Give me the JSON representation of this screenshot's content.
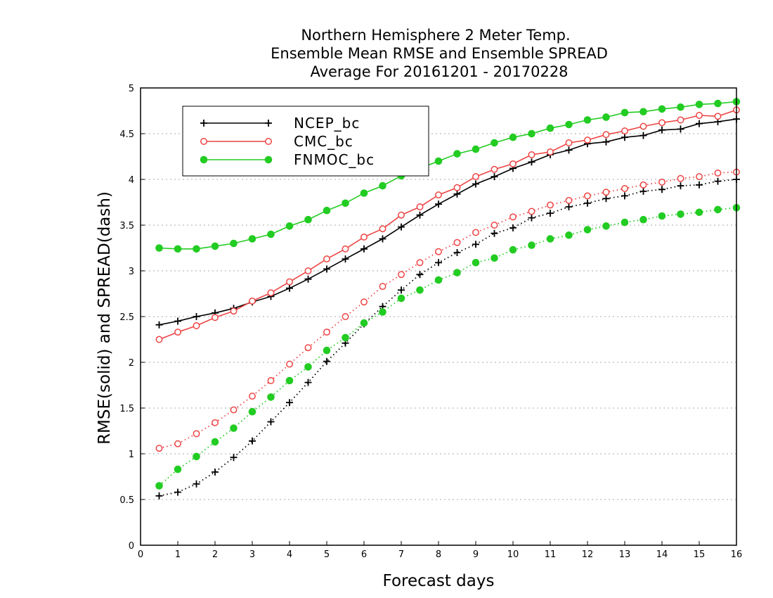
{
  "chart_data": {
    "type": "line",
    "title": [
      "Northern Hemisphere 2 Meter Temp.",
      "Ensemble Mean RMSE and Ensemble SPREAD",
      "Average For 20161201 - 20170228"
    ],
    "xlabel": "Forecast days",
    "ylabel": "RMSE(solid) and SPREAD(dash)",
    "xlim": [
      0,
      16
    ],
    "ylim": [
      0,
      5
    ],
    "x_ticks": [
      "0",
      "1",
      "2",
      "3",
      "4",
      "5",
      "6",
      "7",
      "8",
      "9",
      "10",
      "11",
      "12",
      "13",
      "14",
      "15",
      "16"
    ],
    "y_ticks": [
      "0",
      "0.5",
      "1",
      "1.5",
      "2",
      "2.5",
      "3",
      "3.5",
      "4",
      "4.5",
      "5"
    ],
    "grid": "horizontal dotted",
    "legend_position": "top-left",
    "x": [
      0.5,
      1,
      1.5,
      2,
      2.5,
      3,
      3.5,
      4,
      4.5,
      5,
      5.5,
      6,
      6.5,
      7,
      7.5,
      8,
      8.5,
      9,
      9.5,
      10,
      10.5,
      11,
      11.5,
      12,
      12.5,
      13,
      13.5,
      14,
      14.5,
      15,
      15.5,
      16
    ],
    "series": [
      {
        "name": "NCEP_bc",
        "color": "#000000",
        "marker": "plus",
        "style": "solid",
        "values": [
          2.41,
          2.45,
          2.5,
          2.54,
          2.59,
          2.66,
          2.72,
          2.81,
          2.91,
          3.02,
          3.13,
          3.24,
          3.35,
          3.48,
          3.61,
          3.73,
          3.84,
          3.95,
          4.03,
          4.12,
          4.19,
          4.27,
          4.32,
          4.39,
          4.41,
          4.46,
          4.48,
          4.54,
          4.55,
          4.61,
          4.63,
          4.66
        ]
      },
      {
        "name": "CMC_bc",
        "color": "#ee4444",
        "marker": "open-circle",
        "style": "solid",
        "values": [
          2.25,
          2.33,
          2.4,
          2.49,
          2.56,
          2.67,
          2.76,
          2.88,
          3.0,
          3.13,
          3.24,
          3.37,
          3.46,
          3.61,
          3.7,
          3.83,
          3.91,
          4.03,
          4.11,
          4.17,
          4.27,
          4.3,
          4.4,
          4.43,
          4.49,
          4.53,
          4.58,
          4.62,
          4.65,
          4.7,
          4.69,
          4.76
        ]
      },
      {
        "name": "FNMOC_bc",
        "color": "#22cc22",
        "marker": "filled-circle",
        "style": "solid",
        "values": [
          3.25,
          3.24,
          3.24,
          3.27,
          3.3,
          3.35,
          3.4,
          3.49,
          3.56,
          3.66,
          3.74,
          3.85,
          3.93,
          4.04,
          4.12,
          4.2,
          4.28,
          4.33,
          4.4,
          4.46,
          4.5,
          4.56,
          4.6,
          4.65,
          4.68,
          4.73,
          4.74,
          4.77,
          4.79,
          4.82,
          4.83,
          4.85
        ]
      },
      {
        "name": "",
        "color": "#000000",
        "marker": "plus",
        "style": "dotted",
        "values": [
          0.54,
          0.58,
          0.67,
          0.8,
          0.96,
          1.14,
          1.35,
          1.56,
          1.78,
          2.01,
          2.21,
          2.42,
          2.61,
          2.79,
          2.96,
          3.09,
          3.2,
          3.29,
          3.41,
          3.47,
          3.58,
          3.63,
          3.7,
          3.74,
          3.79,
          3.82,
          3.87,
          3.89,
          3.93,
          3.94,
          3.98,
          4.0
        ]
      },
      {
        "name": "",
        "color": "#ee4444",
        "marker": "open-circle",
        "style": "dotted",
        "values": [
          1.06,
          1.11,
          1.22,
          1.34,
          1.48,
          1.63,
          1.8,
          1.98,
          2.16,
          2.33,
          2.5,
          2.66,
          2.83,
          2.96,
          3.09,
          3.21,
          3.31,
          3.42,
          3.5,
          3.59,
          3.65,
          3.72,
          3.77,
          3.82,
          3.86,
          3.9,
          3.94,
          3.97,
          4.01,
          4.03,
          4.07,
          4.08
        ]
      },
      {
        "name": "",
        "color": "#22cc22",
        "marker": "filled-circle",
        "style": "dotted",
        "values": [
          0.65,
          0.83,
          0.97,
          1.13,
          1.28,
          1.46,
          1.62,
          1.8,
          1.95,
          2.13,
          2.27,
          2.43,
          2.55,
          2.7,
          2.79,
          2.9,
          2.98,
          3.09,
          3.14,
          3.23,
          3.28,
          3.35,
          3.39,
          3.45,
          3.49,
          3.53,
          3.56,
          3.6,
          3.62,
          3.64,
          3.67,
          3.69
        ]
      }
    ]
  }
}
